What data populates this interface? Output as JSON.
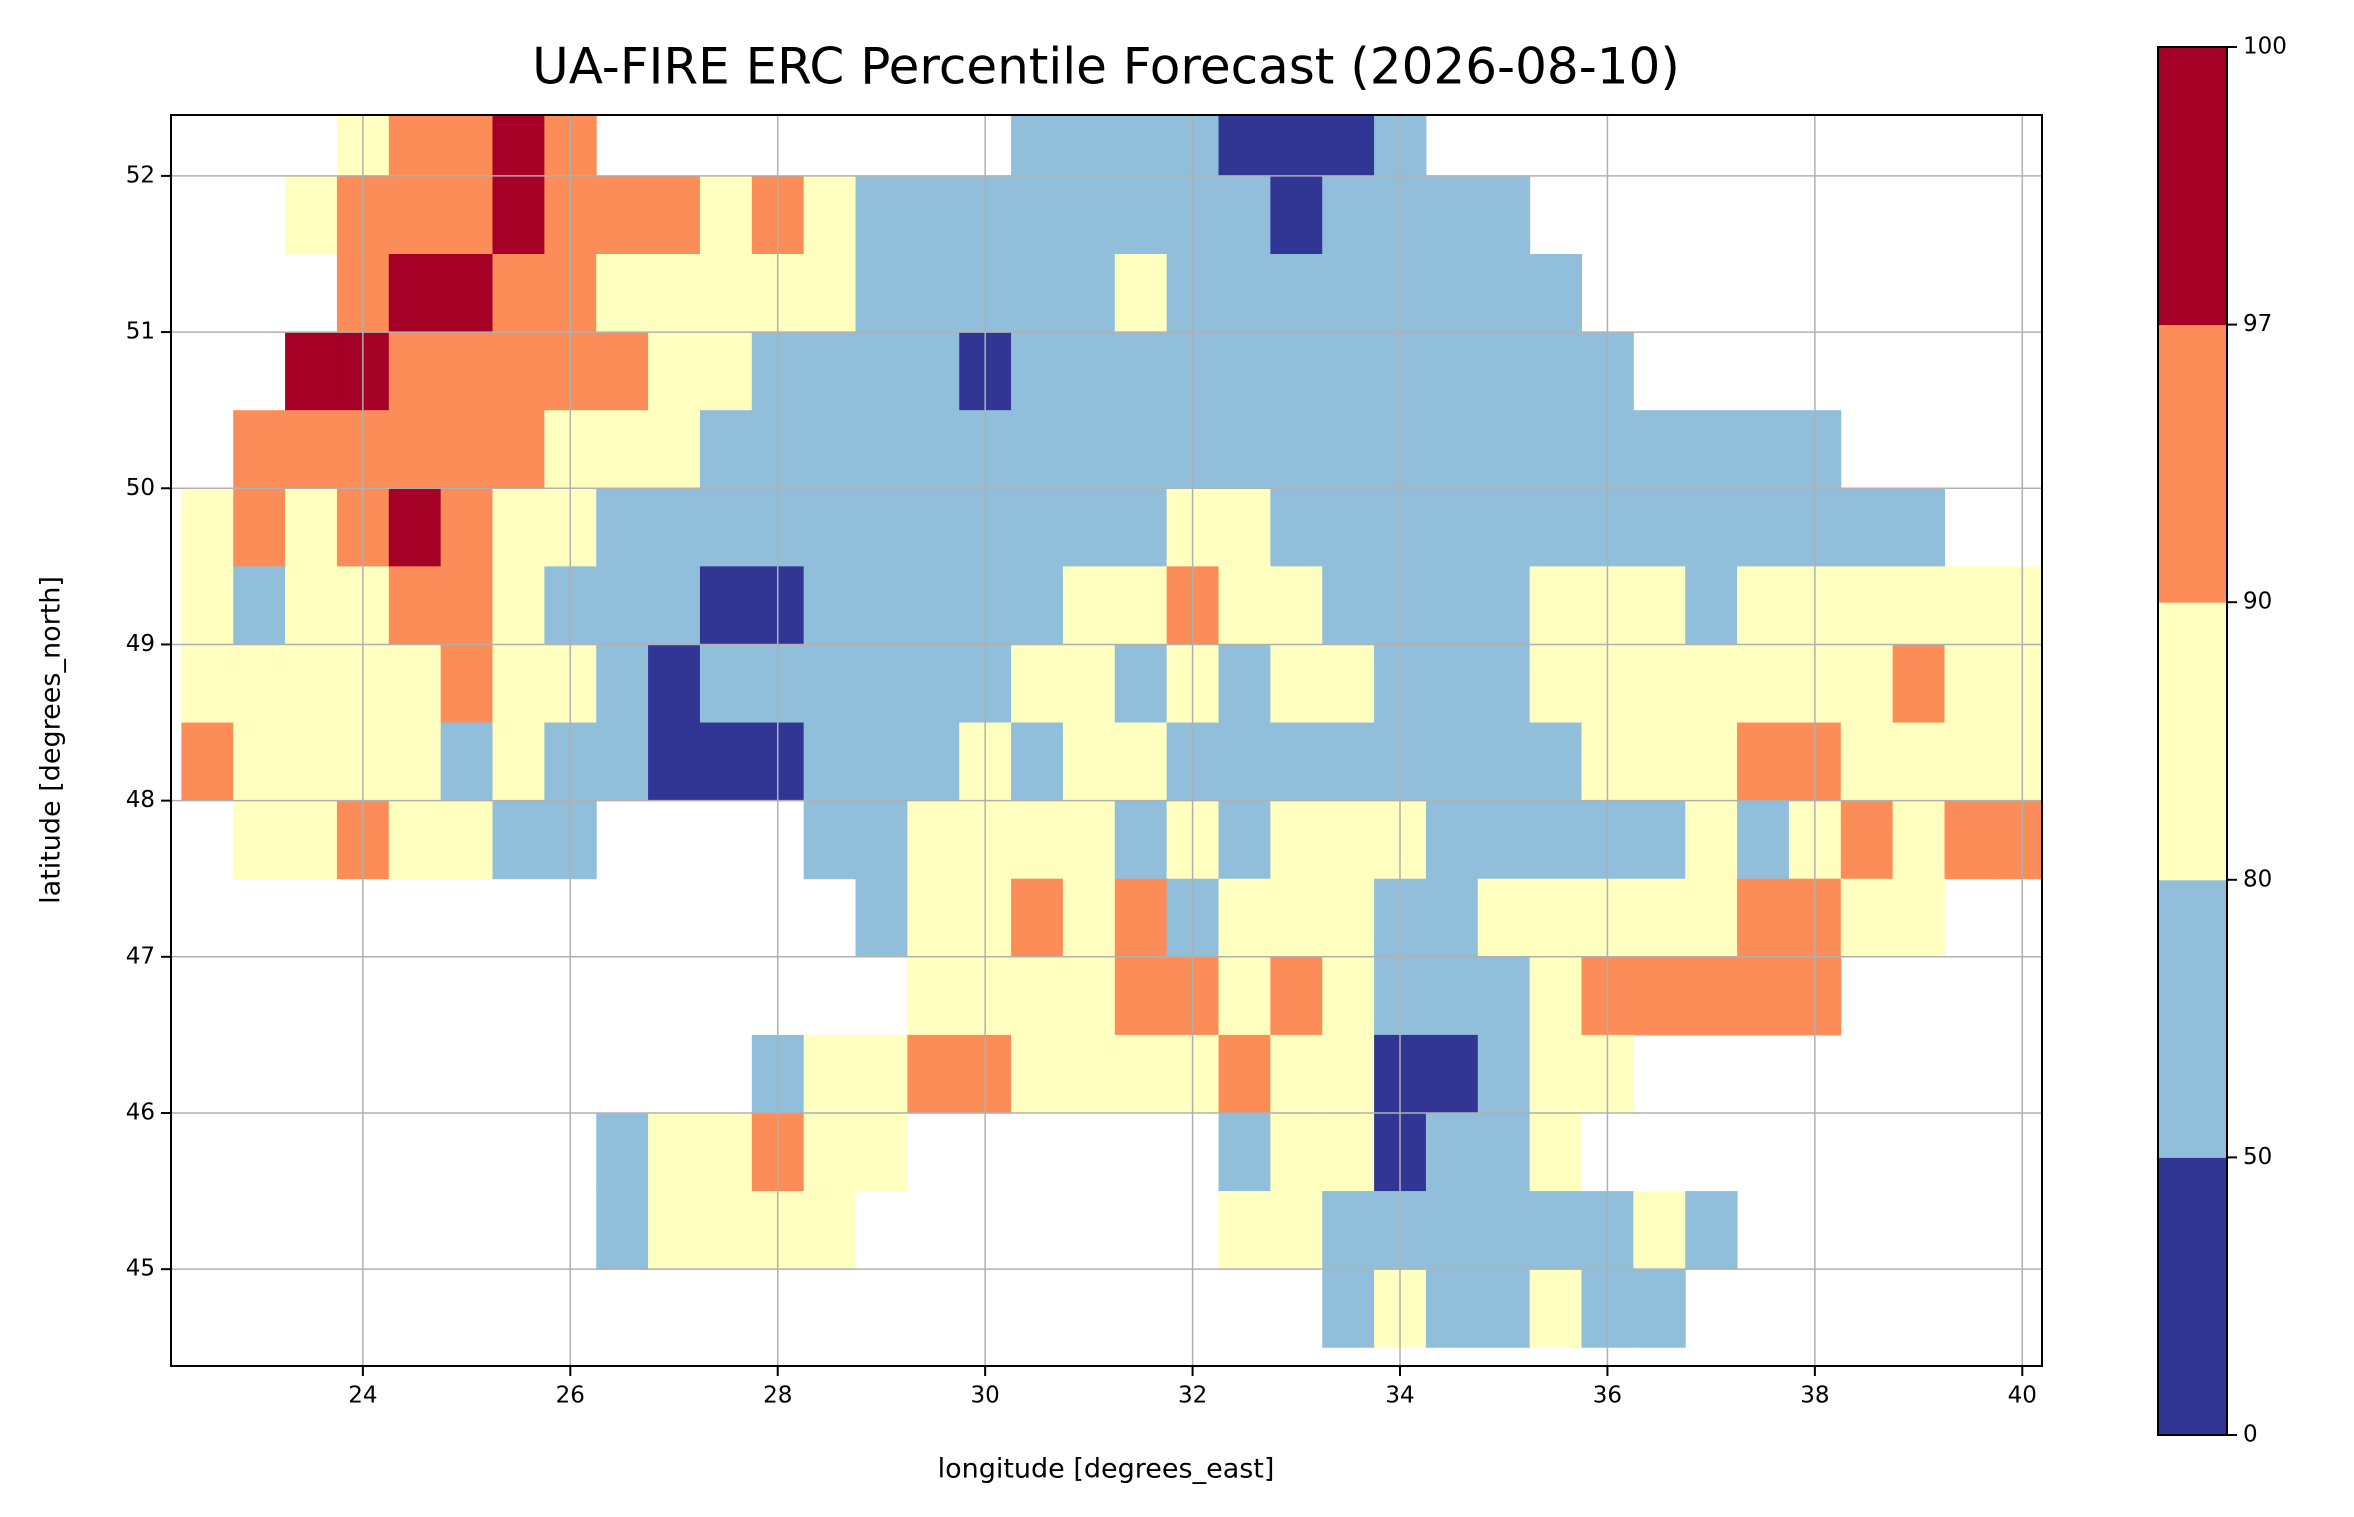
{
  "chart_data": {
    "type": "gridmap",
    "title": "UA-FIRE ERC Percentile Forecast (2026-08-10)",
    "x_label": "longitude [degrees_east]",
    "y_label": "latitude [degrees_north]",
    "xlim": [
      22.15,
      40.19
    ],
    "ylim": [
      44.38,
      52.39
    ],
    "xticks": [
      24,
      26,
      28,
      30,
      32,
      34,
      36,
      38,
      40
    ],
    "yticks": [
      45,
      46,
      47,
      48,
      49,
      50,
      51,
      52
    ],
    "grid": true,
    "x": [
      22.5,
      23.0,
      23.5,
      24.0,
      24.5,
      25.0,
      25.5,
      26.0,
      26.5,
      27.0,
      27.5,
      28.0,
      28.5,
      29.0,
      29.5,
      30.0,
      30.5,
      31.0,
      31.5,
      32.0,
      32.5,
      33.0,
      33.5,
      34.0,
      34.5,
      35.0,
      35.5,
      36.0,
      36.5,
      37.0,
      37.5,
      38.0,
      38.5,
      39.0,
      39.5,
      40.0
    ],
    "y": [
      52.25,
      51.75,
      51.25,
      50.75,
      50.25,
      49.75,
      49.25,
      48.75,
      48.25,
      47.75,
      47.25,
      46.75,
      46.25,
      45.75,
      45.25,
      44.75
    ],
    "values": [
      [
        null,
        null,
        null,
        85,
        93,
        93,
        98,
        93,
        null,
        null,
        null,
        null,
        null,
        null,
        null,
        null,
        65,
        65,
        65,
        65,
        25,
        25,
        25,
        65,
        null,
        null,
        null,
        null,
        null,
        null,
        null,
        null,
        null,
        null,
        null,
        null
      ],
      [
        null,
        null,
        85,
        93,
        93,
        93,
        98,
        93,
        93,
        93,
        85,
        93,
        85,
        65,
        65,
        65,
        65,
        65,
        65,
        65,
        65,
        25,
        65,
        65,
        65,
        65,
        null,
        null,
        null,
        null,
        null,
        null,
        null,
        null,
        null,
        null
      ],
      [
        null,
        null,
        null,
        93,
        98,
        98,
        93,
        93,
        85,
        85,
        85,
        85,
        85,
        65,
        65,
        65,
        65,
        65,
        85,
        65,
        65,
        65,
        65,
        65,
        65,
        65,
        65,
        null,
        null,
        null,
        null,
        null,
        null,
        null,
        null,
        null
      ],
      [
        null,
        null,
        98,
        98,
        93,
        93,
        93,
        93,
        93,
        85,
        85,
        65,
        65,
        65,
        65,
        25,
        65,
        65,
        65,
        65,
        65,
        65,
        65,
        65,
        65,
        65,
        65,
        65,
        null,
        null,
        null,
        null,
        null,
        null,
        null,
        null
      ],
      [
        null,
        93,
        93,
        93,
        93,
        93,
        93,
        85,
        85,
        85,
        65,
        65,
        65,
        65,
        65,
        65,
        65,
        65,
        65,
        65,
        65,
        65,
        65,
        65,
        65,
        65,
        65,
        65,
        65,
        65,
        65,
        65,
        null,
        null,
        null,
        null
      ],
      [
        85,
        93,
        85,
        93,
        98,
        93,
        85,
        85,
        65,
        65,
        65,
        65,
        65,
        65,
        65,
        65,
        65,
        65,
        65,
        85,
        85,
        65,
        65,
        65,
        65,
        65,
        65,
        65,
        65,
        65,
        65,
        65,
        65,
        65,
        null,
        null
      ],
      [
        85,
        65,
        85,
        85,
        93,
        93,
        85,
        65,
        65,
        65,
        25,
        25,
        65,
        65,
        65,
        65,
        65,
        85,
        85,
        93,
        85,
        85,
        65,
        65,
        65,
        65,
        85,
        85,
        85,
        65,
        85,
        85,
        85,
        85,
        85,
        85
      ],
      [
        85,
        85,
        85,
        85,
        85,
        93,
        85,
        85,
        65,
        25,
        65,
        65,
        65,
        65,
        65,
        65,
        85,
        85,
        65,
        85,
        65,
        85,
        85,
        65,
        65,
        65,
        85,
        85,
        85,
        85,
        85,
        85,
        85,
        93,
        85,
        85
      ],
      [
        93,
        85,
        85,
        85,
        85,
        65,
        85,
        65,
        65,
        25,
        25,
        25,
        65,
        65,
        65,
        85,
        65,
        85,
        85,
        65,
        65,
        65,
        65,
        65,
        65,
        65,
        65,
        85,
        85,
        85,
        93,
        93,
        85,
        85,
        85,
        85
      ],
      [
        null,
        85,
        85,
        93,
        85,
        85,
        65,
        65,
        null,
        null,
        null,
        null,
        65,
        65,
        85,
        85,
        85,
        85,
        65,
        85,
        65,
        85,
        85,
        85,
        65,
        65,
        65,
        65,
        65,
        85,
        65,
        85,
        93,
        85,
        93,
        93
      ],
      [
        null,
        null,
        null,
        null,
        null,
        null,
        null,
        null,
        null,
        null,
        null,
        null,
        null,
        65,
        85,
        85,
        93,
        85,
        93,
        65,
        85,
        85,
        85,
        65,
        65,
        85,
        85,
        85,
        85,
        85,
        93,
        93,
        85,
        85,
        null,
        null
      ],
      [
        null,
        null,
        null,
        null,
        null,
        null,
        null,
        null,
        null,
        null,
        null,
        null,
        null,
        null,
        85,
        85,
        85,
        85,
        93,
        93,
        85,
        93,
        85,
        65,
        65,
        65,
        85,
        93,
        93,
        93,
        93,
        93,
        null,
        null,
        null,
        null
      ],
      [
        null,
        null,
        null,
        null,
        null,
        null,
        null,
        null,
        null,
        null,
        null,
        65,
        85,
        85,
        93,
        93,
        85,
        85,
        85,
        85,
        93,
        85,
        85,
        25,
        25,
        65,
        85,
        85,
        null,
        null,
        null,
        null,
        null,
        null,
        null,
        null
      ],
      [
        null,
        null,
        null,
        null,
        null,
        null,
        null,
        null,
        65,
        85,
        85,
        93,
        85,
        85,
        null,
        null,
        null,
        null,
        null,
        null,
        65,
        85,
        85,
        25,
        65,
        65,
        85,
        null,
        null,
        null,
        null,
        null,
        null,
        null,
        null,
        null
      ],
      [
        null,
        null,
        null,
        null,
        null,
        null,
        null,
        null,
        65,
        85,
        85,
        85,
        85,
        null,
        null,
        null,
        null,
        null,
        null,
        null,
        85,
        85,
        65,
        65,
        65,
        65,
        65,
        65,
        85,
        65,
        null,
        null,
        null,
        null,
        null,
        null
      ],
      [
        null,
        null,
        null,
        null,
        null,
        null,
        null,
        null,
        null,
        null,
        null,
        null,
        null,
        null,
        null,
        null,
        null,
        null,
        null,
        null,
        null,
        null,
        65,
        85,
        65,
        65,
        85,
        65,
        65,
        null,
        null,
        null,
        null,
        null,
        null,
        null
      ]
    ],
    "colorbar": {
      "boundaries": [
        0,
        50,
        80,
        90,
        97,
        100
      ],
      "colors": [
        "#313695",
        "#91bfdb",
        "#ffffbf",
        "#fc8d59",
        "#a50026"
      ]
    }
  }
}
